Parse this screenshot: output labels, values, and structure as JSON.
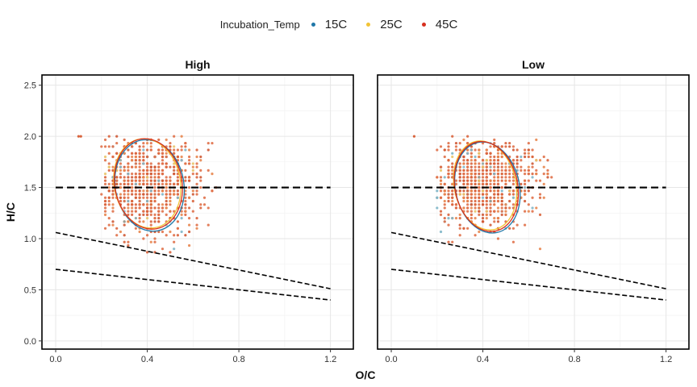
{
  "chart_data": {
    "type": "scatter",
    "legend": {
      "title": "Incubation_Temp",
      "placement": "top-center",
      "entries": [
        {
          "name": "15C",
          "color": "#1f77a8"
        },
        {
          "name": "25C",
          "color": "#f2c335"
        },
        {
          "name": "45C",
          "color": "#d7301f"
        }
      ]
    },
    "xlabel": "O/C",
    "ylabel": "H/C",
    "xlim": [
      -0.06,
      1.3
    ],
    "ylim": [
      -0.08,
      2.6
    ],
    "xticks": [
      0.0,
      0.4,
      0.8,
      1.2
    ],
    "xtick_labels": [
      "0.0",
      "0.4",
      "0.8",
      "1.2"
    ],
    "yticks": [
      0.0,
      0.5,
      1.0,
      1.5,
      2.0,
      2.5
    ],
    "ytick_labels": [
      "0.0",
      "0.5",
      "1.0",
      "1.5",
      "2.0",
      "2.5"
    ],
    "grid": true,
    "reference_lines": [
      {
        "kind": "hline",
        "y": 1.5,
        "style": "dashed",
        "x_range": [
          0.0,
          1.2
        ]
      },
      {
        "kind": "segment",
        "x": [
          0.0,
          1.2
        ],
        "y": [
          1.06,
          0.51
        ],
        "style": "dashed"
      },
      {
        "kind": "segment",
        "x": [
          0.0,
          1.2
        ],
        "y": [
          0.7,
          0.4
        ],
        "style": "dashed"
      }
    ],
    "panels": [
      {
        "title": "High",
        "point_cloud": {
          "x_center": 0.4,
          "y_center": 1.55,
          "x_spread": 0.13,
          "y_spread": 0.25,
          "x_range": [
            0.2,
            0.7
          ],
          "y_range": [
            0.8,
            2.0
          ]
        },
        "outliers": [
          {
            "x": 0.1,
            "y": 2.0
          },
          {
            "x": 0.11,
            "y": 2.0
          }
        ],
        "ellipses": [
          {
            "series": "15C",
            "cx": 0.41,
            "cy": 1.52,
            "rx": 0.15,
            "ry": 0.45,
            "angle": -10
          },
          {
            "series": "25C",
            "cx": 0.4,
            "cy": 1.54,
            "rx": 0.145,
            "ry": 0.44,
            "angle": -10
          },
          {
            "series": "45C",
            "cx": 0.405,
            "cy": 1.535,
            "rx": 0.147,
            "ry": 0.445,
            "angle": -10
          }
        ]
      },
      {
        "title": "Low",
        "point_cloud": {
          "x_center": 0.4,
          "y_center": 1.55,
          "x_spread": 0.12,
          "y_spread": 0.22,
          "x_range": [
            0.2,
            0.7
          ],
          "y_range": [
            0.9,
            2.0
          ]
        },
        "outliers": [
          {
            "x": 0.1,
            "y": 2.0
          }
        ],
        "ellipses": [
          {
            "series": "15C",
            "cx": 0.42,
            "cy": 1.5,
            "rx": 0.14,
            "ry": 0.45,
            "angle": -12
          },
          {
            "series": "25C",
            "cx": 0.41,
            "cy": 1.52,
            "rx": 0.135,
            "ry": 0.44,
            "angle": -12
          },
          {
            "series": "45C",
            "cx": 0.415,
            "cy": 1.51,
            "rx": 0.137,
            "ry": 0.445,
            "angle": -12
          }
        ]
      }
    ]
  }
}
